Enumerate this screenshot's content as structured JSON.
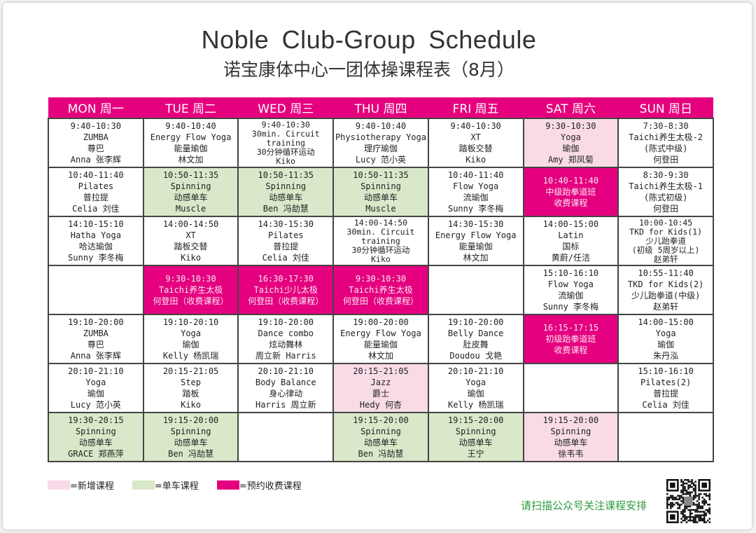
{
  "header": {
    "title": "Noble  Club-Group  Schedule",
    "subtitle": "诺宝康体中心一团体操课程表（8月）"
  },
  "colors": {
    "header": "#e5007e",
    "new": "#f9dbe8",
    "spin": "#d9e8c9",
    "paid": "#e4007f",
    "scan_text": "#2e9b3e"
  },
  "schedule": {
    "days": [
      "MON 周一",
      "TUE 周二",
      "WED 周三",
      "THU 周四",
      "FRI 周五",
      "SAT 周六",
      "SUN 周日"
    ],
    "rows": [
      {
        "cells": [
          {
            "type": "white",
            "lines": [
              "9:40-10:30",
              "ZUMBA",
              "尊巴",
              "Anna 张李辉"
            ]
          },
          {
            "type": "white",
            "lines": [
              "9:40-10:40",
              "Energy Flow Yoga",
              "能量瑜伽",
              "林文加"
            ]
          },
          {
            "type": "white",
            "lines": [
              "9:40-10:30",
              "30min. Circuit",
              "training",
              "30分钟循环运动",
              "Kiko"
            ]
          },
          {
            "type": "white",
            "lines": [
              "9:40-10:40",
              "Physiotherapy Yoga",
              "理疗瑜伽",
              "Lucy 范小英"
            ]
          },
          {
            "type": "white",
            "lines": [
              "9:40-10:30",
              "XT",
              "踏板交替",
              "Kiko"
            ]
          },
          {
            "type": "new",
            "lines": [
              "9:30-10:30",
              "Yoga",
              "瑜伽",
              "Amy 郑凤菊"
            ]
          },
          {
            "type": "white",
            "lines": [
              "7:30-8:30",
              "Taichi养生太极-2",
              "(陈式中级)",
              "何登田"
            ]
          }
        ]
      },
      {
        "cells": [
          {
            "type": "white",
            "lines": [
              "10:40-11:40",
              "Pilates",
              "普拉提",
              "Celia 刘佳"
            ]
          },
          {
            "type": "spin",
            "lines": [
              "10:50-11:35",
              "Spinning",
              "动感单车",
              "Muscle"
            ]
          },
          {
            "type": "spin",
            "lines": [
              "10:50-11:35",
              "Spinning",
              "动感单车",
              "Ben 冯劼慧"
            ]
          },
          {
            "type": "spin",
            "lines": [
              "10:50-11:35",
              "Spinning",
              "动感单车",
              "Muscle"
            ]
          },
          {
            "type": "white",
            "lines": [
              "10:40-11:40",
              "Flow Yoga",
              "流瑜伽",
              "Sunny 李冬梅"
            ]
          },
          {
            "type": "paid",
            "lines": [
              "10:40-11:40",
              "中级跆拳道班",
              "收费课程"
            ]
          },
          {
            "type": "white",
            "lines": [
              "8:30-9:30",
              "Taichi养生太极-1",
              "(陈式初级)",
              "何登田"
            ]
          }
        ]
      },
      {
        "cells": [
          {
            "type": "white",
            "lines": [
              "14:10-15:10",
              "Hatha Yoga",
              "哈达瑜伽",
              "Sunny 李冬梅"
            ]
          },
          {
            "type": "white",
            "lines": [
              "14:00-14:50",
              "XT",
              "踏板交替",
              "Kiko"
            ]
          },
          {
            "type": "white",
            "lines": [
              "14:30-15:30",
              "Pilates",
              "普拉提",
              "Celia 刘佳"
            ]
          },
          {
            "type": "white",
            "lines": [
              "14:00-14:50",
              "30min. Circuit",
              "training",
              "30分钟循环运动",
              "Kiko"
            ]
          },
          {
            "type": "white",
            "lines": [
              "14:30-15:30",
              "Energy Flow Yoga",
              "能量瑜伽",
              "林文加"
            ]
          },
          {
            "type": "white",
            "lines": [
              "14:00-15:00",
              "Latin",
              "国标",
              "黄蔚/任洁"
            ]
          },
          {
            "type": "white",
            "lines": [
              "10:00-10:45",
              "TKD for Kids(1)",
              "少儿跆拳道",
              "(初级 5周岁以上)",
              "赵弟轩"
            ]
          }
        ]
      },
      {
        "cells": [
          {
            "type": "white",
            "lines": []
          },
          {
            "type": "paid",
            "lines": [
              "9:30-10:30",
              "Taichi养生太极",
              "何登田（收费课程）"
            ]
          },
          {
            "type": "paid",
            "lines": [
              "16:30-17:30",
              "Taichi少儿太极",
              "何登田（收费课程）"
            ]
          },
          {
            "type": "paid",
            "lines": [
              "9:30-10:30",
              "Taichi养生太极",
              "何登田（收费课程）"
            ]
          },
          {
            "type": "white",
            "lines": []
          },
          {
            "type": "white",
            "lines": [
              "15:10-16:10",
              "Flow Yoga",
              "流瑜伽",
              "Sunny 李冬梅"
            ]
          },
          {
            "type": "white",
            "lines": [
              "10:55-11:40",
              "TKD for Kids(2)",
              "少儿跆拳道(中级)",
              "赵弟轩"
            ]
          }
        ]
      },
      {
        "cells": [
          {
            "type": "white",
            "lines": [
              "19:10-20:00",
              "ZUMBA",
              "尊巴",
              "Anna 张李辉"
            ]
          },
          {
            "type": "white",
            "lines": [
              "19:10-20:10",
              "Yoga",
              "瑜伽",
              "Kelly 杨凯瑞"
            ]
          },
          {
            "type": "white",
            "lines": [
              "19:10-20:00",
              "Dance combo",
              "炫动舞林",
              "周立新 Harris"
            ]
          },
          {
            "type": "white",
            "lines": [
              "19:00-20:00",
              "Energy Flow Yoga",
              "能量瑜伽",
              "林文加"
            ]
          },
          {
            "type": "white",
            "lines": [
              "19:10-20:00",
              "Belly Dance",
              "肚皮舞",
              "Doudou 戈艳"
            ]
          },
          {
            "type": "paid",
            "lines": [
              "16:15-17:15",
              "初级跆拳道班",
              "收费课程"
            ]
          },
          {
            "type": "white",
            "lines": [
              "14:00-15:00",
              "Yoga",
              "瑜伽",
              "朱丹泓"
            ]
          }
        ]
      },
      {
        "cells": [
          {
            "type": "white",
            "lines": [
              "20:10-21:10",
              "Yoga",
              "瑜伽",
              "Lucy 范小英"
            ]
          },
          {
            "type": "white",
            "lines": [
              "20:15-21:05",
              "Step",
              "踏板",
              "Kiko"
            ]
          },
          {
            "type": "white",
            "lines": [
              "20:10-21:10",
              "Body Balance",
              "身心律动",
              "Harris  周立新"
            ]
          },
          {
            "type": "new",
            "lines": [
              "20:15-21:05",
              "Jazz",
              "爵士",
              "Hedy  何杏"
            ]
          },
          {
            "type": "white",
            "lines": [
              "20:10-21:10",
              "Yoga",
              "瑜伽",
              "Kelly 杨凯瑞"
            ]
          },
          {
            "type": "white",
            "lines": []
          },
          {
            "type": "white",
            "lines": [
              "15:10-16:10",
              "Pilates(2)",
              "普拉提",
              "Celia 刘佳"
            ]
          }
        ]
      },
      {
        "cells": [
          {
            "type": "spin",
            "lines": [
              "19:30-20:15",
              "Spinning",
              "动感单车",
              "GRACE 郑燕萍"
            ]
          },
          {
            "type": "spin",
            "lines": [
              "19:15-20:00",
              "Spinning",
              "动感单车",
              "Ben 冯劼慧"
            ]
          },
          {
            "type": "white",
            "lines": []
          },
          {
            "type": "spin",
            "lines": [
              "19:15-20:00",
              "Spinning",
              "动感单车",
              "Ben 冯劼慧"
            ]
          },
          {
            "type": "spin",
            "lines": [
              "19:15-20:00",
              "Spinning",
              "动感单车",
              "王宁"
            ]
          },
          {
            "type": "new",
            "lines": [
              "19:15-20:00",
              "Spinning",
              "动感单车",
              "徐韦韦"
            ]
          },
          {
            "type": "white",
            "lines": []
          }
        ]
      }
    ]
  },
  "legend": [
    {
      "type": "new",
      "label": "=新增课程"
    },
    {
      "type": "spin",
      "label": "=单车课程"
    },
    {
      "type": "paid",
      "label": "=预约收费课程"
    }
  ],
  "footer": {
    "scan_text": "请扫描公众号关注课程安排",
    "qr_icon": "qr-code"
  }
}
